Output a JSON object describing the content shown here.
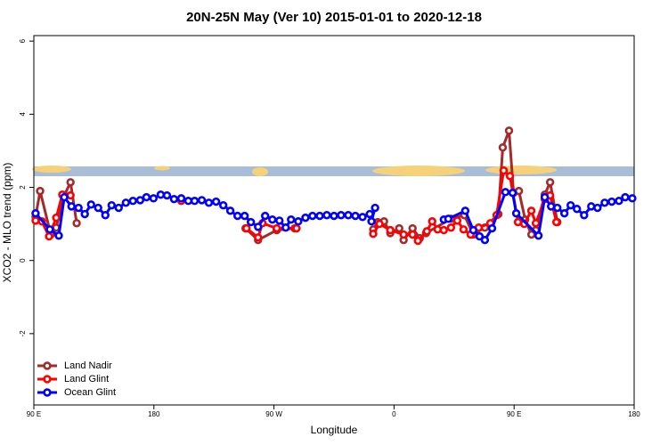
{
  "chart_data": {
    "type": "line",
    "title": "20N-25N May (Ver 10)   2015-01-01 to 2020-12-18",
    "x_label": "Longitude",
    "y_label": "XCO2 - MLO trend (ppm)",
    "xlim": [
      90,
      540
    ],
    "ylim": [
      -3.95,
      6.15
    ],
    "xticks": [
      {
        "value": 90,
        "label": "90 E"
      },
      180,
      {
        "value": 270,
        "label": "90 W"
      },
      {
        "value": 360,
        "label": "0"
      },
      {
        "value": 450,
        "label": "90 E"
      },
      {
        "value": 540,
        "label": "180"
      }
    ],
    "yticks": [
      -2,
      0,
      2,
      4,
      6
    ],
    "legend": "bottom-left",
    "series": [
      {
        "name": "Land Nadir",
        "color": "#a52a2a",
        "x": [
          91.3,
          94.7,
          102.7,
          106.7,
          112.8,
          117.5,
          122.1,
          null,
          200.5,
          null,
          248.7,
          258.1,
          272.1,
          285.5,
          null,
          344.4,
          347.8,
          352.5,
          357.2,
          363.9,
          367.2,
          373.9,
          379.3,
          384.0,
          402.7,
          412.7,
          419.4,
          428.1,
          438.2,
          441.5,
          446.2,
          449.6,
          453.6,
          458.3,
          463.0,
          466.3,
          473.0,
          477.0,
          482.4
        ],
        "values": [
          1.19,
          1.9,
          0.71,
          0.9,
          1.78,
          2.14,
          1.02,
          null,
          1.65,
          null,
          0.88,
          0.56,
          0.83,
          0.88,
          null,
          0.85,
          1.05,
          1.07,
          0.75,
          0.88,
          0.56,
          0.88,
          0.61,
          0.75,
          1.14,
          1.24,
          0.71,
          0.9,
          1.27,
          3.09,
          3.55,
          1.85,
          1.9,
          1.12,
          0.71,
          0.83,
          1.8,
          2.14,
          1.05
        ]
      },
      {
        "name": "Land Glint",
        "color": "#ff0000",
        "x": [
          91.3,
          96.0,
          101.4,
          106.8,
          111.3,
          117.5,
          null,
          200.5,
          null,
          249.4,
          258.1,
          261.4,
          272.1,
          286.9,
          null,
          344.4,
          349.1,
          357.2,
          367.2,
          373.9,
          377.9,
          384.6,
          388.6,
          392.7,
          397.3,
          402.7,
          407.4,
          412.1,
          417.4,
          423.5,
          432.2,
          436.9,
          442.2,
          446.9,
          452.9,
          457.6,
          462.9,
          466.3,
          473.0,
          477.0,
          481.7
        ],
        "values": [
          1.09,
          1.07,
          0.66,
          1.17,
          1.8,
          1.78,
          null,
          1.63,
          null,
          0.88,
          0.63,
          1.02,
          0.88,
          0.88,
          null,
          0.73,
          1.0,
          0.83,
          0.71,
          0.71,
          0.54,
          0.8,
          1.07,
          0.85,
          0.83,
          0.9,
          1.09,
          0.85,
          0.71,
          0.9,
          1.02,
          1.24,
          2.46,
          2.31,
          1.05,
          1.0,
          1.36,
          1.02,
          1.68,
          1.78,
          1.05
        ]
      },
      {
        "name": "Ocean Glint",
        "color": "#0000ff",
        "x": [
          91.3,
          102.0,
          108.7,
          112.8,
          118.2,
          123.5,
          128.2,
          132.9,
          138.2,
          143.6,
          148.3,
          153.6,
          159.0,
          164.3,
          169.7,
          174.4,
          179.7,
          185.1,
          189.8,
          195.1,
          200.5,
          205.8,
          210.5,
          215.9,
          221.2,
          226.6,
          232.0,
          237.3,
          242.7,
          248.0,
          252.7,
          258.1,
          263.4,
          268.8,
          274.1,
          278.8,
          282.8,
          288.2,
          293.6,
          298.9,
          304.3,
          309.6,
          315.0,
          320.3,
          325.7,
          331.0,
          336.4,
          341.8,
          343.1,
          345.8,
          null,
          397.3,
          400.7,
          413.4,
          419.4,
          424.1,
          428.1,
          433.5,
          443.5,
          448.9,
          451.6,
          468.3,
          473.0,
          477.7,
          482.4,
          487.7,
          492.4,
          497.1,
          502.5,
          507.8,
          512.5,
          517.9,
          523.2,
          528.6,
          533.3,
          538.6
        ],
        "values": [
          1.29,
          0.85,
          0.68,
          1.73,
          1.48,
          1.44,
          1.27,
          1.53,
          1.44,
          1.24,
          1.51,
          1.44,
          1.58,
          1.63,
          1.65,
          1.73,
          1.7,
          1.8,
          1.78,
          1.68,
          1.7,
          1.63,
          1.63,
          1.65,
          1.58,
          1.61,
          1.51,
          1.36,
          1.22,
          1.22,
          1.05,
          0.92,
          1.22,
          1.12,
          1.09,
          0.9,
          1.12,
          1.07,
          1.17,
          1.22,
          1.22,
          1.24,
          1.22,
          1.24,
          1.24,
          1.22,
          1.19,
          1.27,
          1.07,
          1.44,
          null,
          1.12,
          1.14,
          1.36,
          0.83,
          0.66,
          0.56,
          0.88,
          1.87,
          1.85,
          1.29,
          0.68,
          1.73,
          1.48,
          1.44,
          1.29,
          1.51,
          1.41,
          1.24,
          1.48,
          1.44,
          1.58,
          1.61,
          1.63,
          1.73,
          1.7
        ]
      }
    ]
  }
}
